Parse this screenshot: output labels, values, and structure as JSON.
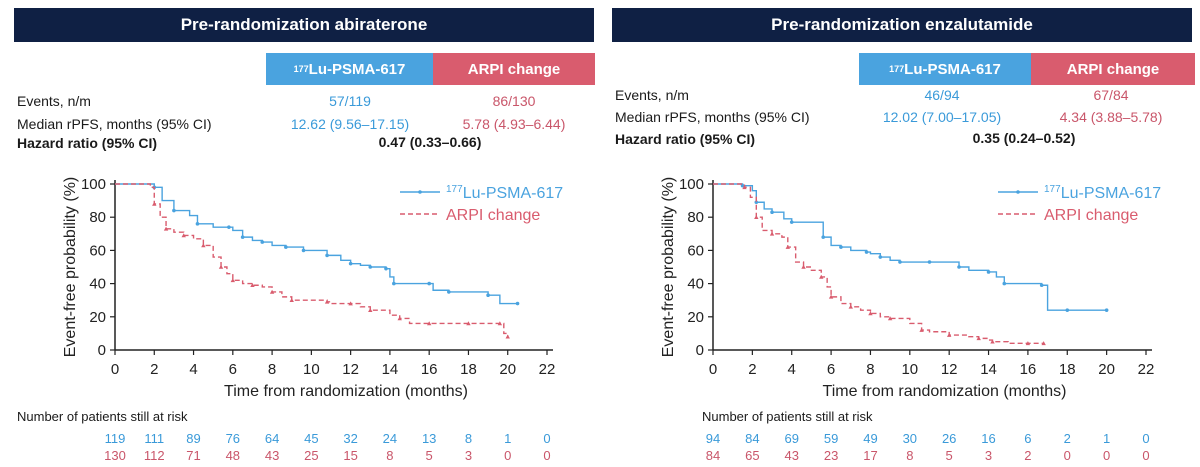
{
  "labels": {
    "lu_sup": "177",
    "lu_name": "Lu-PSMA-617",
    "arpi": "ARPI change",
    "events": "Events, n/m",
    "median": "Median rPFS, months (95% CI)",
    "hr": "Hazard ratio (95% CI)",
    "ylabel": "Event-free probability (%)",
    "xlabel": "Time from randomization (months)",
    "risk_title": "Number of patients still at risk"
  },
  "colors": {
    "lu": "#4aa3df",
    "arpi": "#d95c6e",
    "header": "#0f2044"
  },
  "panels": [
    {
      "title": "Pre-randomization abiraterone",
      "lu_events": "57/119",
      "arpi_events": "86/130",
      "lu_median": "12.62 (9.56–17.15)",
      "arpi_median": "5.78 (4.93–6.44)",
      "hr": "0.47 (0.33–0.66)",
      "risk_lu": [
        "119",
        "111",
        "89",
        "76",
        "64",
        "45",
        "32",
        "24",
        "13",
        "8",
        "1",
        "0"
      ],
      "risk_arpi": [
        "130",
        "112",
        "71",
        "48",
        "43",
        "25",
        "15",
        "8",
        "5",
        "3",
        "0",
        "0"
      ]
    },
    {
      "title": "Pre-randomization enzalutamide",
      "lu_events": "46/94",
      "arpi_events": "67/84",
      "lu_median": "12.02 (7.00–17.05)",
      "arpi_median": "4.34 (3.88–5.78)",
      "hr": "0.35 (0.24–0.52)",
      "risk_lu": [
        "94",
        "84",
        "69",
        "59",
        "49",
        "30",
        "26",
        "16",
        "6",
        "2",
        "1",
        "0"
      ],
      "risk_arpi": [
        "84",
        "65",
        "43",
        "23",
        "17",
        "8",
        "5",
        "3",
        "2",
        "0",
        "0",
        "0"
      ]
    }
  ],
  "chart_data": [
    {
      "type": "line",
      "title": "Pre-randomization abiraterone",
      "xlabel": "Time from randomization (months)",
      "ylabel": "Event-free probability (%)",
      "xlim": [
        0,
        22
      ],
      "ylim": [
        0,
        100
      ],
      "xticks": [
        0,
        2,
        4,
        6,
        8,
        10,
        12,
        14,
        16,
        18,
        20,
        22
      ],
      "yticks": [
        0,
        20,
        40,
        60,
        80,
        100
      ],
      "legend": "top-right",
      "series": [
        {
          "name": "177Lu-PSMA-617",
          "style": "solid",
          "color": "#4aa3df",
          "points": [
            [
              0,
              100
            ],
            [
              1.2,
              100
            ],
            [
              2,
              98
            ],
            [
              2.4,
              90
            ],
            [
              3,
              84
            ],
            [
              3.8,
              81
            ],
            [
              4.2,
              76
            ],
            [
              5,
              74
            ],
            [
              5.8,
              74
            ],
            [
              6,
              72
            ],
            [
              6.5,
              68
            ],
            [
              7,
              66
            ],
            [
              7.5,
              65
            ],
            [
              8,
              63
            ],
            [
              8.7,
              62
            ],
            [
              9,
              62
            ],
            [
              9.6,
              60
            ],
            [
              10,
              60
            ],
            [
              10.8,
              57
            ],
            [
              11.5,
              54
            ],
            [
              12,
              52
            ],
            [
              12.5,
              51
            ],
            [
              13,
              50
            ],
            [
              13.4,
              50
            ],
            [
              13.8,
              49
            ],
            [
              14,
              44
            ],
            [
              14.2,
              40
            ],
            [
              15,
              40
            ],
            [
              16,
              40
            ],
            [
              16.2,
              36
            ],
            [
              17,
              35
            ],
            [
              18,
              35
            ],
            [
              19,
              33
            ],
            [
              19.6,
              28
            ],
            [
              20.5,
              28
            ]
          ]
        },
        {
          "name": "ARPI change",
          "style": "dashed",
          "color": "#d95c6e",
          "points": [
            [
              0,
              100
            ],
            [
              1.8,
              98
            ],
            [
              2,
              88
            ],
            [
              2.3,
              80
            ],
            [
              2.6,
              73
            ],
            [
              3,
              71
            ],
            [
              3.5,
              69
            ],
            [
              4,
              67
            ],
            [
              4.5,
              63
            ],
            [
              5,
              56
            ],
            [
              5.4,
              50
            ],
            [
              5.7,
              46
            ],
            [
              6,
              42
            ],
            [
              6.5,
              40
            ],
            [
              7,
              39
            ],
            [
              7.5,
              38
            ],
            [
              8,
              35
            ],
            [
              8.5,
              32
            ],
            [
              9,
              30
            ],
            [
              10,
              30
            ],
            [
              10.8,
              29
            ],
            [
              11,
              28
            ],
            [
              12,
              28
            ],
            [
              12.5,
              26
            ],
            [
              13,
              24
            ],
            [
              14,
              21
            ],
            [
              14.5,
              19
            ],
            [
              15,
              16
            ],
            [
              16,
              16
            ],
            [
              17,
              16
            ],
            [
              18,
              16
            ],
            [
              19,
              16
            ],
            [
              19.6,
              16
            ],
            [
              19.8,
              10
            ],
            [
              20,
              8
            ]
          ]
        }
      ]
    },
    {
      "type": "line",
      "title": "Pre-randomization enzalutamide",
      "xlabel": "Time from randomization (months)",
      "ylabel": "Event-free probability (%)",
      "xlim": [
        0,
        22
      ],
      "ylim": [
        0,
        100
      ],
      "xticks": [
        0,
        2,
        4,
        6,
        8,
        10,
        12,
        14,
        16,
        18,
        20,
        22
      ],
      "yticks": [
        0,
        20,
        40,
        60,
        80,
        100
      ],
      "legend": "top-right",
      "series": [
        {
          "name": "177Lu-PSMA-617",
          "style": "solid",
          "color": "#4aa3df",
          "points": [
            [
              0,
              100
            ],
            [
              1,
              100
            ],
            [
              1.5,
              99
            ],
            [
              2,
              96
            ],
            [
              2.2,
              89
            ],
            [
              2.6,
              85
            ],
            [
              3,
              83
            ],
            [
              3.6,
              79
            ],
            [
              4,
              77
            ],
            [
              5,
              77
            ],
            [
              5.6,
              68
            ],
            [
              6,
              63
            ],
            [
              6.5,
              62
            ],
            [
              7,
              60
            ],
            [
              7.8,
              59
            ],
            [
              8,
              58
            ],
            [
              8.5,
              56
            ],
            [
              9,
              54
            ],
            [
              9.5,
              53
            ],
            [
              10,
              53
            ],
            [
              11,
              53
            ],
            [
              12,
              53
            ],
            [
              12.5,
              50
            ],
            [
              13,
              48
            ],
            [
              14,
              47
            ],
            [
              14.4,
              44
            ],
            [
              14.8,
              40
            ],
            [
              16,
              40
            ],
            [
              16.7,
              39
            ],
            [
              17,
              24
            ],
            [
              18,
              24
            ],
            [
              19,
              24
            ],
            [
              20,
              24
            ]
          ]
        },
        {
          "name": "ARPI change",
          "style": "dashed",
          "color": "#d95c6e",
          "points": [
            [
              0,
              100
            ],
            [
              1,
              100
            ],
            [
              1.6,
              98
            ],
            [
              1.9,
              92
            ],
            [
              2.2,
              80
            ],
            [
              2.5,
              72
            ],
            [
              3,
              70
            ],
            [
              3.5,
              68
            ],
            [
              3.8,
              62
            ],
            [
              4.2,
              53
            ],
            [
              4.6,
              50
            ],
            [
              5,
              48
            ],
            [
              5.5,
              44
            ],
            [
              5.8,
              38
            ],
            [
              6,
              32
            ],
            [
              6.5,
              28
            ],
            [
              7,
              26
            ],
            [
              7.5,
              24
            ],
            [
              8,
              22
            ],
            [
              8.5,
              20
            ],
            [
              9,
              19
            ],
            [
              10,
              16
            ],
            [
              10.6,
              12
            ],
            [
              11,
              11
            ],
            [
              12,
              9
            ],
            [
              13,
              8
            ],
            [
              13.5,
              7
            ],
            [
              14,
              6
            ],
            [
              14.2,
              5
            ],
            [
              15,
              4
            ],
            [
              16,
              4
            ],
            [
              16.5,
              4
            ],
            [
              16.8,
              4
            ]
          ]
        }
      ]
    }
  ]
}
